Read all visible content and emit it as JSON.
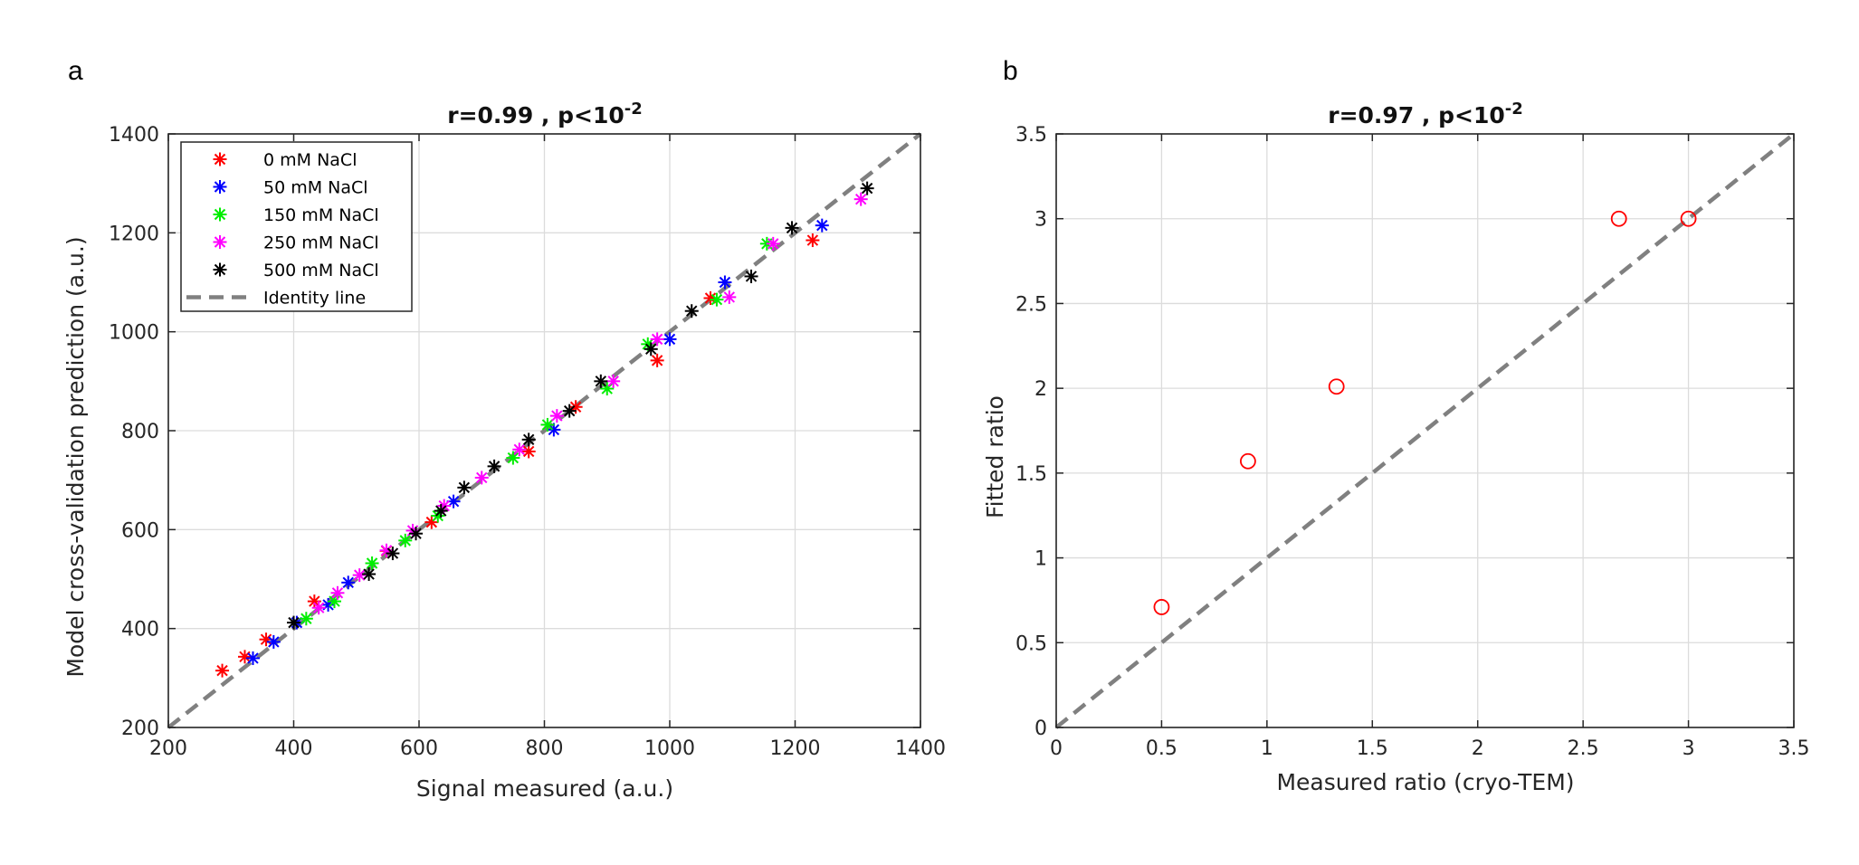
{
  "panels": [
    {
      "letter": "a",
      "title": "r=0.99 ,  p<10",
      "title_sup": "-2",
      "xlabel": "Signal measured (a.u.)",
      "ylabel": "Model cross-validation prediction (a.u.)",
      "legend": [
        "0 mM NaCl",
        "50 mM NaCl",
        "150 mM NaCl",
        "250 mM NaCl",
        "500 mM NaCl",
        "Identity line"
      ]
    },
    {
      "letter": "b",
      "title": "r=0.97 ,  p<10",
      "title_sup": "-2",
      "xlabel": "Measured ratio (cryo-TEM)",
      "ylabel": "Fitted ratio"
    }
  ],
  "chart_data": [
    {
      "type": "scatter",
      "title": "r=0.99 ,  p<10^-2",
      "xlabel": "Signal measured (a.u.)",
      "ylabel": "Model cross-validation prediction (a.u.)",
      "xlim": [
        200,
        1400
      ],
      "ylim": [
        200,
        1400
      ],
      "xticks": [
        200,
        400,
        600,
        800,
        1000,
        1200,
        1400
      ],
      "yticks": [
        200,
        400,
        600,
        800,
        1000,
        1200,
        1400
      ],
      "grid": true,
      "legend_position": "top-left",
      "marker": "asterisk",
      "identity_line": {
        "name": "Identity line",
        "color": "#808080",
        "style": "dashed"
      },
      "series": [
        {
          "name": "0 mM NaCl",
          "color": "#ff0000",
          "x": [
            286,
            322,
            356,
            433,
            548,
            620,
            775,
            850,
            980,
            1065,
            1228
          ],
          "y": [
            315,
            343,
            378,
            455,
            557,
            615,
            758,
            848,
            942,
            1068,
            1185
          ]
        },
        {
          "name": "50 mM NaCl",
          "color": "#0000ff",
          "x": [
            335,
            368,
            405,
            455,
            487,
            655,
            815,
            1000,
            1088,
            1243
          ],
          "y": [
            340,
            373,
            412,
            448,
            493,
            657,
            802,
            985,
            1100,
            1215
          ]
        },
        {
          "name": "150 mM NaCl",
          "color": "#00ee00",
          "x": [
            420,
            465,
            525,
            578,
            630,
            750,
            805,
            900,
            965,
            1075,
            1155
          ],
          "y": [
            420,
            455,
            532,
            578,
            628,
            745,
            812,
            885,
            975,
            1065,
            1178
          ]
        },
        {
          "name": "250 mM NaCl",
          "color": "#ff00ff",
          "x": [
            440,
            470,
            505,
            548,
            590,
            640,
            700,
            760,
            820,
            910,
            980,
            1095,
            1165,
            1305
          ],
          "y": [
            442,
            472,
            508,
            558,
            598,
            648,
            705,
            762,
            830,
            900,
            985,
            1070,
            1178,
            1268
          ]
        },
        {
          "name": "500 mM NaCl",
          "color": "#000000",
          "x": [
            400,
            520,
            558,
            595,
            635,
            672,
            720,
            775,
            840,
            890,
            970,
            1035,
            1130,
            1195,
            1315
          ],
          "y": [
            412,
            510,
            552,
            592,
            638,
            685,
            728,
            782,
            840,
            900,
            965,
            1042,
            1112,
            1210,
            1290
          ]
        }
      ]
    },
    {
      "type": "scatter",
      "title": "r=0.97 ,  p<10^-2",
      "xlabel": "Measured ratio (cryo-TEM)",
      "ylabel": "Fitted ratio",
      "xlim": [
        0,
        3.5
      ],
      "ylim": [
        0,
        3.5
      ],
      "xticks": [
        0,
        0.5,
        1,
        1.5,
        2,
        2.5,
        3,
        3.5
      ],
      "yticks": [
        0,
        0.5,
        1,
        1.5,
        2,
        2.5,
        3,
        3.5
      ],
      "grid": true,
      "marker": "circle",
      "identity_line": {
        "color": "#808080",
        "style": "dashed"
      },
      "series": [
        {
          "color": "#ff0000",
          "x": [
            0.5,
            0.91,
            1.33,
            2.67,
            3.0
          ],
          "y": [
            0.71,
            1.57,
            2.01,
            3.0,
            3.0
          ]
        }
      ]
    }
  ]
}
